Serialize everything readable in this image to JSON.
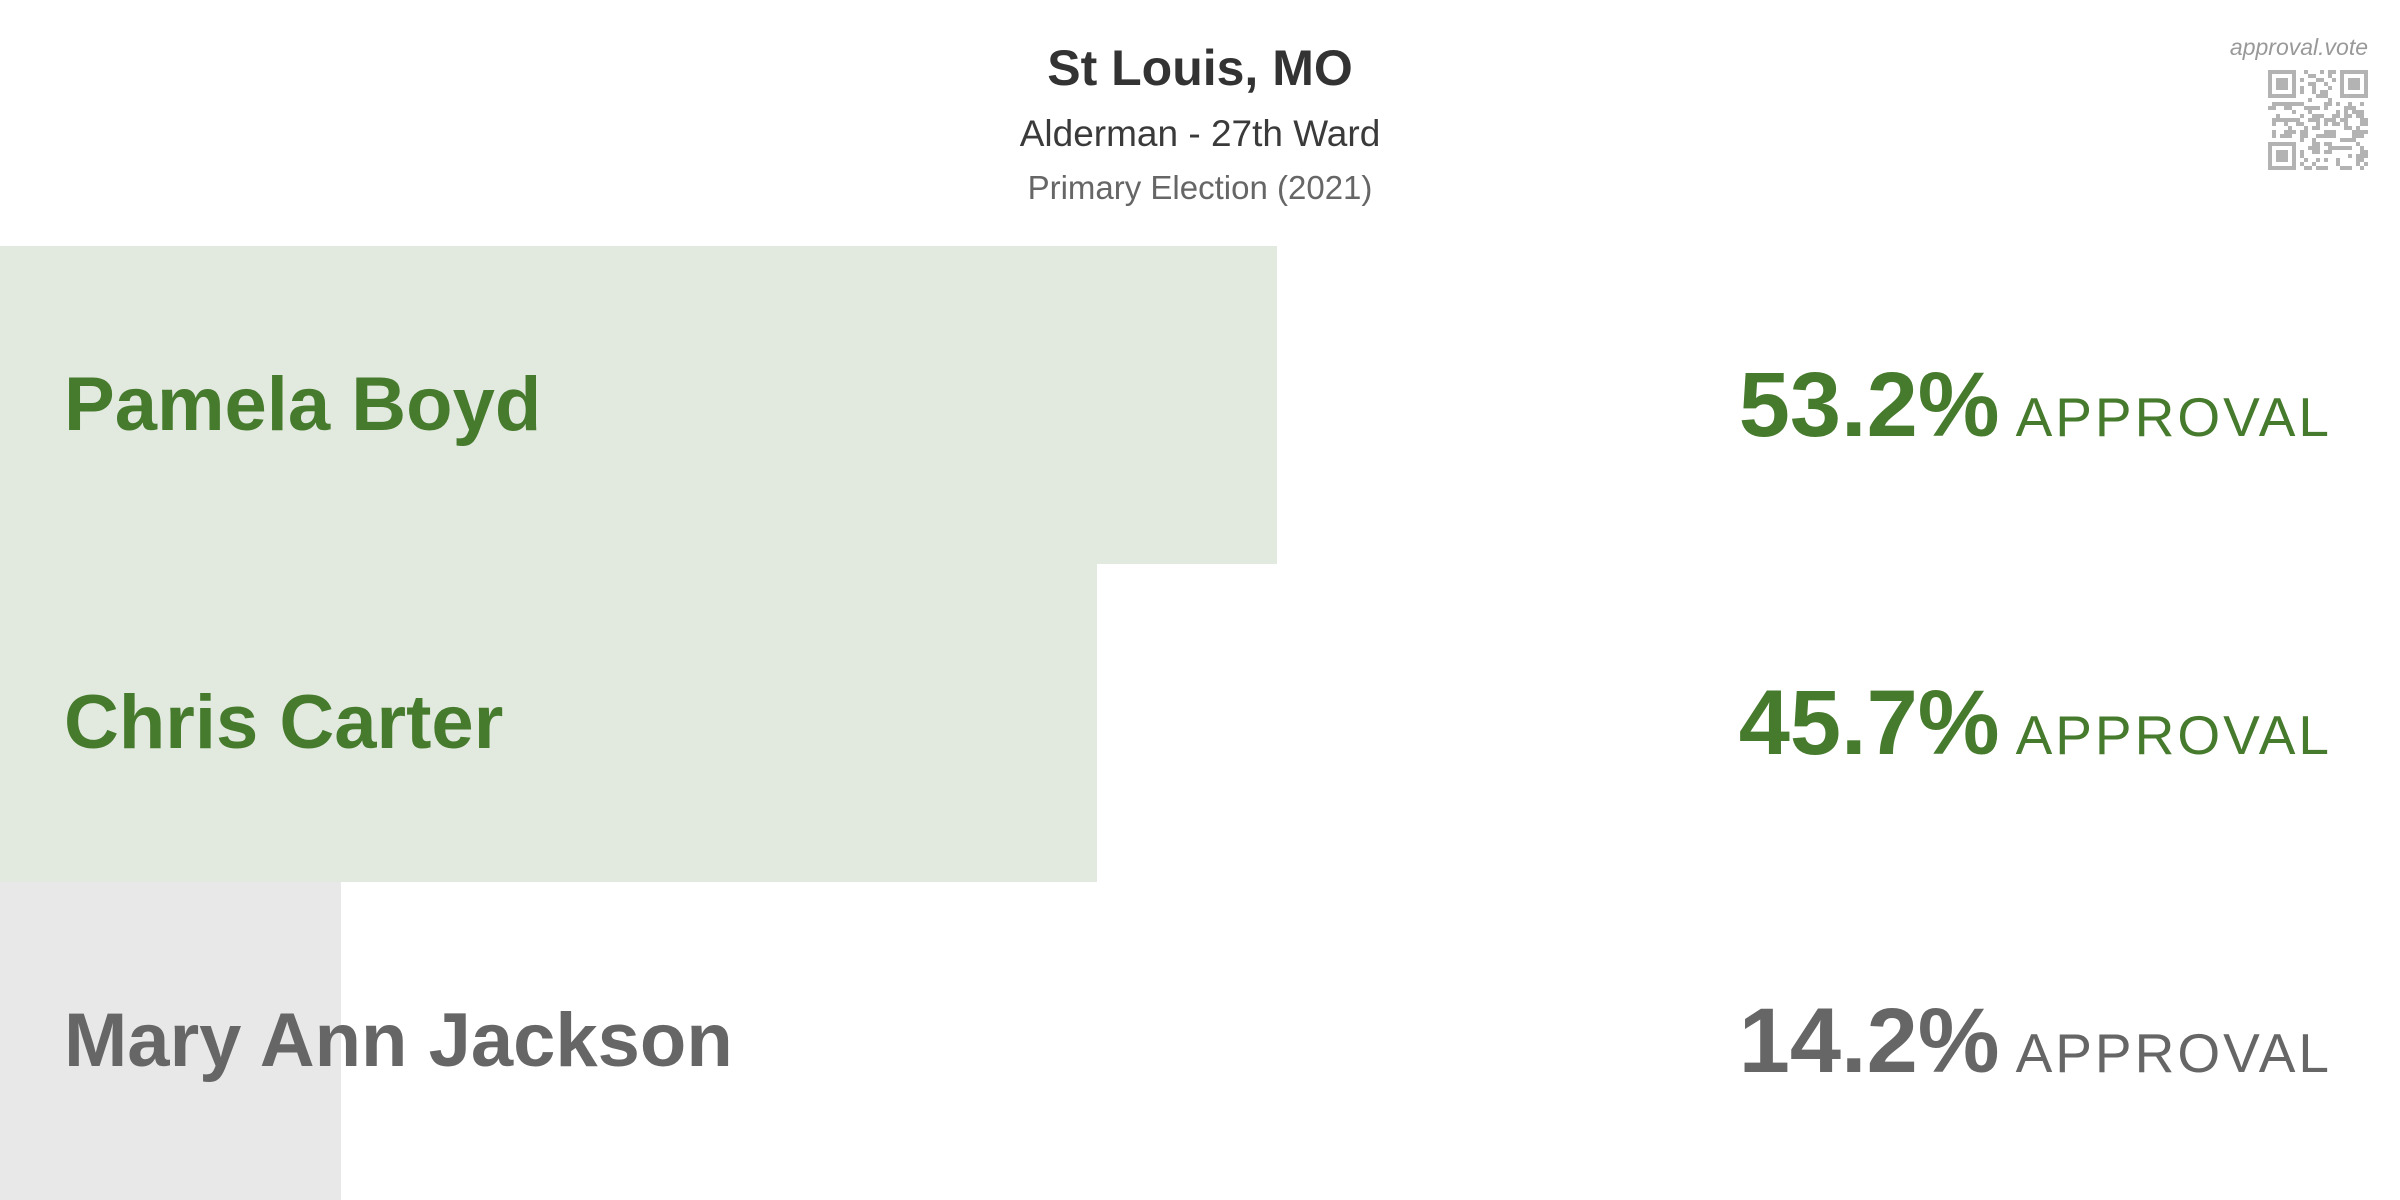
{
  "header": {
    "title": "St Louis, MO",
    "subtitle": "Alderman - 27th Ward",
    "election": "Primary Election (2021)",
    "brand": "approval.vote"
  },
  "colors": {
    "winner_text": "#467a2d",
    "winner_bar": "#e2eadf",
    "loser_text": "#666666",
    "loser_bar": "#e8e8e8"
  },
  "chart_data": {
    "type": "bar",
    "orientation": "horizontal",
    "title": "St Louis, MO",
    "subtitle": "Alderman - 27th Ward",
    "categories": [
      "Pamela Boyd",
      "Chris Carter",
      "Mary Ann Jackson"
    ],
    "values": [
      53.2,
      45.7,
      14.2
    ],
    "value_labels": [
      "53.2%",
      "45.7%",
      "14.2%"
    ],
    "value_suffix": "APPROVAL",
    "winners": [
      true,
      true,
      false
    ],
    "xlim": [
      0,
      100
    ]
  }
}
